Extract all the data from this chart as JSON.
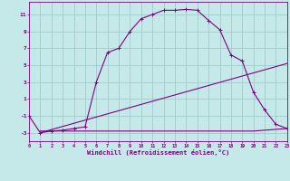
{
  "title": "",
  "xlabel": "Windchill (Refroidissement éolien,°C)",
  "bg_color": "#c5e8e8",
  "grid_color": "#a0cccc",
  "line_color": "#800080",
  "xlim": [
    0,
    23
  ],
  "ylim": [
    -4,
    12.5
  ],
  "xticks": [
    0,
    1,
    2,
    3,
    4,
    5,
    6,
    7,
    8,
    9,
    10,
    11,
    12,
    13,
    14,
    15,
    16,
    17,
    18,
    19,
    20,
    21,
    22,
    23
  ],
  "yticks": [
    -3,
    -1,
    1,
    3,
    5,
    7,
    9,
    11
  ],
  "curve1_x": [
    0,
    1,
    2,
    3,
    4,
    5,
    6,
    7,
    8,
    9,
    10,
    11,
    12,
    13,
    14,
    15,
    16,
    17,
    18,
    19,
    20,
    21,
    22,
    23
  ],
  "curve1_y": [
    -1,
    -3,
    -2.8,
    -2.7,
    -2.5,
    -2.3,
    3.0,
    6.5,
    7.0,
    9.0,
    10.5,
    11.0,
    11.5,
    11.5,
    11.6,
    11.5,
    10.3,
    9.2,
    6.2,
    5.5,
    1.8,
    -0.3,
    -2.0,
    -2.5
  ],
  "curve2_x": [
    1,
    23
  ],
  "curve2_y": [
    -3,
    5.2
  ],
  "curve3_x": [
    1,
    20,
    23
  ],
  "curve3_y": [
    -2.8,
    -2.8,
    -2.5
  ],
  "marker": "+"
}
